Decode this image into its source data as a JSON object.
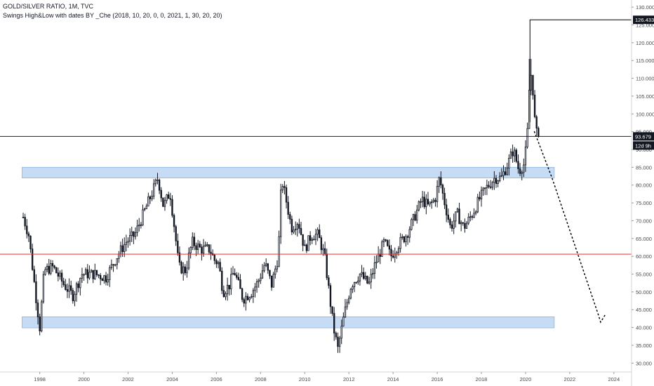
{
  "header": {
    "line1": "GOLD/SILVER RATIO, 1M, TVC",
    "line2": "Swings High&Low with dates BY _Che (2018, 10, 20, 0, 0, 2021, 1, 30, 20, 20)"
  },
  "colors": {
    "candle": "#131722",
    "zone_fill": "#bbd6f2",
    "zone_stroke": "#8fb4dc",
    "red_line": "#e53935",
    "black_line": "#000000",
    "axis_text": "#4a4a4a"
  },
  "chart_data": {
    "type": "candlestick",
    "title": "GOLD/SILVER RATIO, 1M, TVC",
    "subtitle": "Swings High&Low with dates BY _Che (2018, 10, 20, 0, 0, 2021, 1, 30, 20, 20)",
    "x_ticks": [
      "1998",
      "2000",
      "2002",
      "2004",
      "2006",
      "2008",
      "2010",
      "2012",
      "2014",
      "2016",
      "2018",
      "2020",
      "2022",
      "2024"
    ],
    "y_ticks": [
      "30.000",
      "35.000",
      "40.000",
      "45.000",
      "50.000",
      "55.000",
      "60.000",
      "65.000",
      "70.000",
      "75.000",
      "80.000",
      "85.000",
      "90.000",
      "95.000",
      "100.000",
      "105.000",
      "110.000",
      "115.000",
      "120.000",
      "125.000",
      "130.000"
    ],
    "xlim": [
      1996.2,
      2024.8
    ],
    "ylim": [
      27.5,
      132.0
    ],
    "price_label": "93.679",
    "price_value": 93.679,
    "countdown_label": "12d 9h",
    "high_label": "126.433",
    "high_value": 126.433,
    "high_date": 2020.2,
    "red_line_value": 60.6,
    "zones": [
      {
        "x_start": 1997.2,
        "x_end": 2021.3,
        "y_low": 82.0,
        "y_high": 85.0
      },
      {
        "x_start": 1997.2,
        "x_end": 2021.3,
        "y_low": 39.9,
        "y_high": 43.0
      }
    ],
    "projection": [
      [
        2020.4,
        95.0
      ],
      [
        2021.2,
        82.0
      ],
      [
        2022.4,
        60.0
      ],
      [
        2023.3,
        43.5
      ],
      [
        2023.4,
        41.5
      ],
      [
        2023.6,
        43.5
      ]
    ],
    "anchors": [
      [
        1997.25,
        71
      ],
      [
        1997.5,
        66
      ],
      [
        1997.8,
        50
      ],
      [
        1998.0,
        40
      ],
      [
        1998.2,
        56
      ],
      [
        1998.6,
        57
      ],
      [
        1999.1,
        52
      ],
      [
        1999.5,
        49
      ],
      [
        1999.9,
        55
      ],
      [
        2000.5,
        55
      ],
      [
        2001.0,
        54
      ],
      [
        2001.5,
        60
      ],
      [
        2001.9,
        64
      ],
      [
        2002.3,
        66
      ],
      [
        2002.7,
        72
      ],
      [
        2003.1,
        78
      ],
      [
        2003.35,
        82
      ],
      [
        2003.6,
        74
      ],
      [
        2003.9,
        78
      ],
      [
        2004.1,
        68
      ],
      [
        2004.3,
        57
      ],
      [
        2004.6,
        56
      ],
      [
        2004.9,
        64
      ],
      [
        2005.3,
        62
      ],
      [
        2005.7,
        62
      ],
      [
        2005.9,
        59
      ],
      [
        2006.1,
        58
      ],
      [
        2006.3,
        50
      ],
      [
        2006.6,
        52
      ],
      [
        2006.8,
        56
      ],
      [
        2007.2,
        48
      ],
      [
        2007.6,
        50
      ],
      [
        2007.9,
        53
      ],
      [
        2008.2,
        58
      ],
      [
        2008.5,
        52
      ],
      [
        2008.8,
        60
      ],
      [
        2008.95,
        82
      ],
      [
        2009.15,
        76
      ],
      [
        2009.4,
        68
      ],
      [
        2009.7,
        70
      ],
      [
        2010.0,
        62
      ],
      [
        2010.3,
        66
      ],
      [
        2010.6,
        66
      ],
      [
        2010.9,
        60
      ],
      [
        2011.1,
        50
      ],
      [
        2011.3,
        40
      ],
      [
        2011.5,
        34
      ],
      [
        2011.8,
        44
      ],
      [
        2012.1,
        52
      ],
      [
        2012.5,
        55
      ],
      [
        2012.9,
        52
      ],
      [
        2013.2,
        58
      ],
      [
        2013.6,
        64
      ],
      [
        2013.9,
        60
      ],
      [
        2014.2,
        63
      ],
      [
        2014.6,
        66
      ],
      [
        2014.9,
        70
      ],
      [
        2015.3,
        76
      ],
      [
        2015.6,
        74
      ],
      [
        2015.9,
        76
      ],
      [
        2016.1,
        82
      ],
      [
        2016.3,
        76
      ],
      [
        2016.6,
        68
      ],
      [
        2016.9,
        72
      ],
      [
        2017.2,
        68
      ],
      [
        2017.6,
        72
      ],
      [
        2017.9,
        76
      ],
      [
        2018.2,
        79
      ],
      [
        2018.6,
        82
      ],
      [
        2018.9,
        82
      ],
      [
        2019.2,
        86
      ],
      [
        2019.45,
        90
      ],
      [
        2019.7,
        84
      ],
      [
        2019.95,
        86
      ],
      [
        2020.1,
        96
      ],
      [
        2020.2,
        112
      ],
      [
        2020.3,
        110
      ],
      [
        2020.45,
        95
      ],
      [
        2020.6,
        93.5
      ]
    ]
  }
}
